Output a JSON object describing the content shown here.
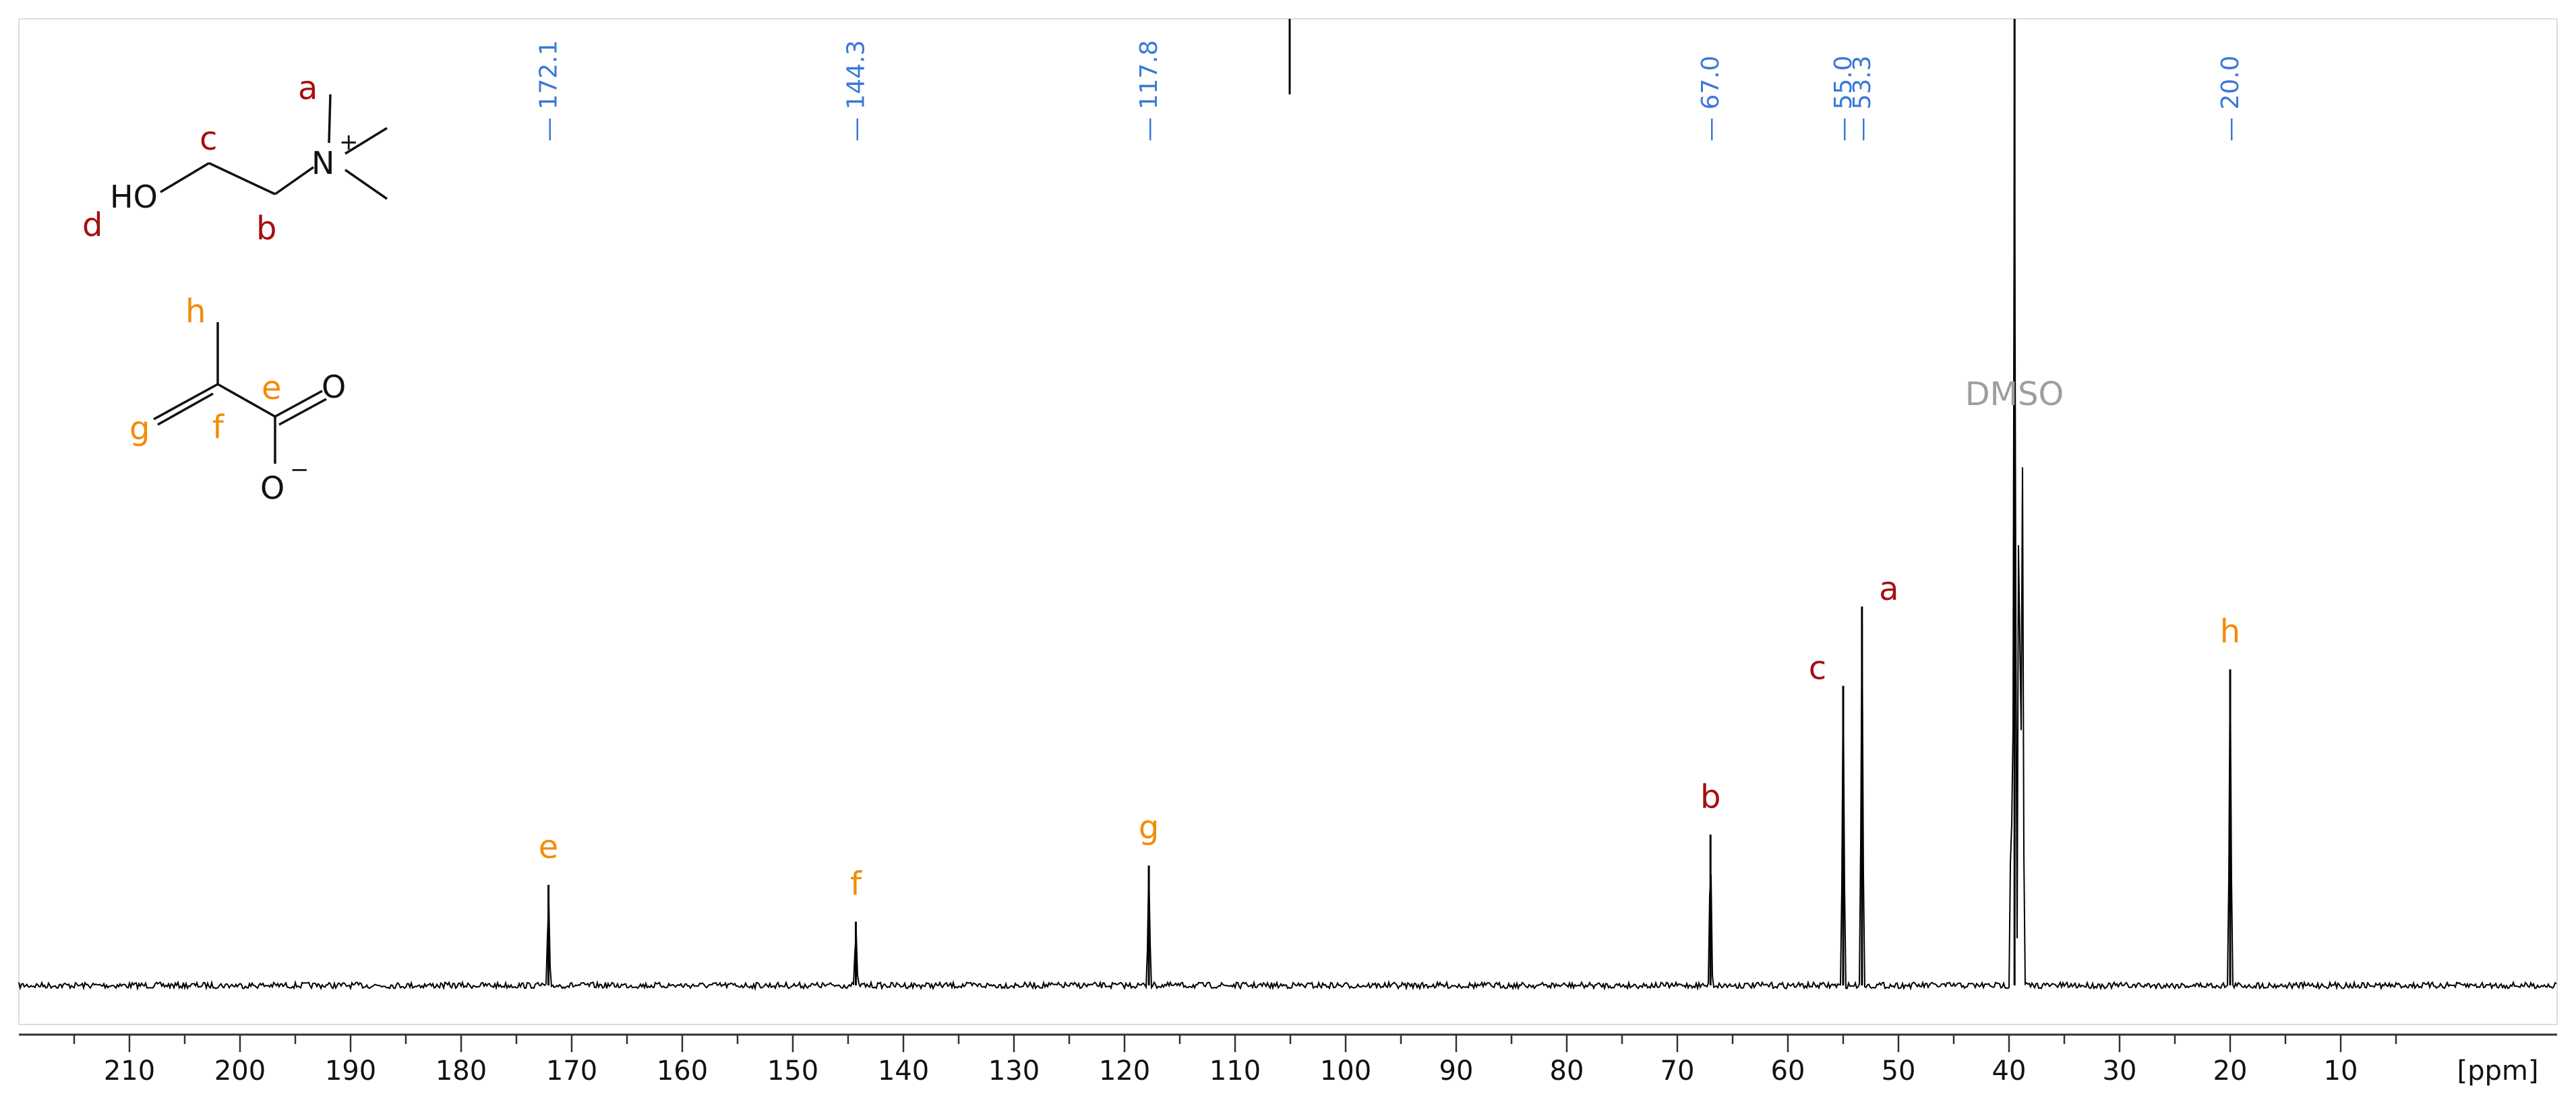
{
  "chart_data": {
    "type": "line",
    "title": "",
    "xlabel": "[ppm]",
    "ylabel": "",
    "xlim": [
      220,
      0
    ],
    "x_reversed": true,
    "x_ticks_major": [
      210,
      200,
      190,
      180,
      170,
      160,
      150,
      140,
      130,
      120,
      110,
      100,
      90,
      80,
      70,
      60,
      50,
      40,
      30,
      20,
      10
    ],
    "x_ticks_minor_step": 5,
    "grid": false,
    "legend": "none",
    "peak_list_ppm": [
      "172.1",
      "144.3",
      "117.8",
      "67.0",
      "55.0",
      "53.3",
      "20.0"
    ],
    "peaks": [
      {
        "ppm": 172.1,
        "height": 0.104,
        "assignment": "e",
        "group": "acrylate"
      },
      {
        "ppm": 144.3,
        "height": 0.066,
        "assignment": "f",
        "group": "acrylate"
      },
      {
        "ppm": 117.8,
        "height": 0.124,
        "assignment": "g",
        "group": "acrylate"
      },
      {
        "ppm": 67.0,
        "height": 0.156,
        "assignment": "b",
        "group": "choline"
      },
      {
        "ppm": 55.0,
        "height": 0.31,
        "assignment": "c",
        "group": "choline"
      },
      {
        "ppm": 53.3,
        "height": 0.392,
        "assignment": "a",
        "group": "choline"
      },
      {
        "ppm": 20.0,
        "height": 0.327,
        "assignment": "h",
        "group": "acrylate"
      }
    ],
    "solvent": {
      "label": "DMSO",
      "ppm": 39.5,
      "height": 1.0
    },
    "colors": {
      "choline": "#a50f0f",
      "acrylate": "#f28c0a",
      "ppm_labels": "#3b78d8",
      "solvent": "#9e9e9e",
      "trace": "#000000"
    }
  },
  "structures": {
    "choline": {
      "labels": {
        "a": "a",
        "b": "b",
        "c": "c",
        "d": "d"
      },
      "atoms": {
        "hydroxyl": "HO",
        "nitrogen": "N",
        "charge": "+"
      }
    },
    "acrylate": {
      "labels": {
        "e": "e",
        "f": "f",
        "g": "g",
        "h": "h"
      },
      "atoms": {
        "carbonyl_o": "O",
        "anion_o": "O",
        "charge": "−"
      }
    }
  }
}
